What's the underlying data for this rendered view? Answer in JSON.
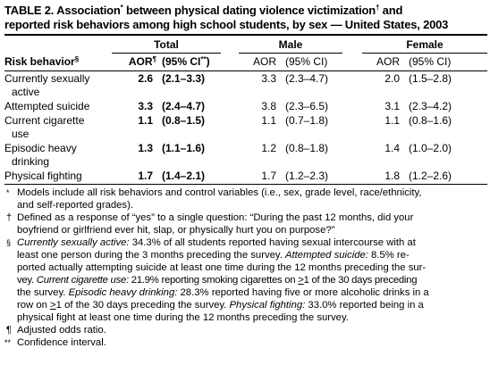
{
  "title": {
    "line1": "TABLE 2. Association",
    "mark1": "*",
    "line1b": " between physical dating violence victimization",
    "mark2": "†",
    "line1c": " and",
    "line2": "reported risk behaviors among high school students, by sex — United States, 2003"
  },
  "groups": [
    "Total",
    "Male",
    "Female"
  ],
  "headers": {
    "risk": "Risk behavior",
    "risk_mark": "§",
    "total_aor": "AOR",
    "total_aor_mark": "¶",
    "total_ci": "(95% CI",
    "total_ci_mark": "**",
    "total_ci_close": ")",
    "male_aor": "AOR",
    "male_ci": "(95% CI)",
    "female_aor": "AOR",
    "female_ci": "(95% CI)"
  },
  "rows": [
    {
      "label1": "Currently sexually",
      "label2": "active",
      "t_aor": "2.6",
      "t_ci": "(2.1–3.3)",
      "m_aor": "3.3",
      "m_ci": "(2.3–4.7)",
      "f_aor": "2.0",
      "f_ci": "(1.5–2.8)"
    },
    {
      "label1": "Attempted suicide",
      "label2": "",
      "t_aor": "3.3",
      "t_ci": "(2.4–4.7)",
      "m_aor": "3.8",
      "m_ci": "(2.3–6.5)",
      "f_aor": "3.1",
      "f_ci": "(2.3–4.2)"
    },
    {
      "label1": "Current cigarette",
      "label2": "use",
      "t_aor": "1.1",
      "t_ci": "(0.8–1.5)",
      "m_aor": "1.1",
      "m_ci": "(0.7–1.8)",
      "f_aor": "1.1",
      "f_ci": "(0.8–1.6)"
    },
    {
      "label1": "Episodic heavy",
      "label2": "drinking",
      "t_aor": "1.3",
      "t_ci": "(1.1–1.6)",
      "m_aor": "1.2",
      "m_ci": "(0.8–1.8)",
      "f_aor": "1.4",
      "f_ci": "(1.0–2.0)"
    },
    {
      "label1": "Physical fighting",
      "label2": "",
      "t_aor": "1.7",
      "t_ci": "(1.4–2.1)",
      "m_aor": "1.7",
      "m_ci": "(1.2–2.3)",
      "f_aor": "1.8",
      "f_ci": "(1.2–2.6)"
    }
  ],
  "footnotes": {
    "n1_mark": "*",
    "n1_line1": "Models include all risk behaviors and control variables (i.e., sex, grade level, race/ethnicity,",
    "n1_line2": "and self-reported grades).",
    "n2_mark": "†",
    "n2_line1": "Defined as a response of “yes” to a single question: “During the past 12 months, did your",
    "n2_line2": "boyfriend or girlfriend ever hit, slap, or physically hurt you on purpose?”",
    "n3_mark": "§",
    "n3_l1_i": "Currently sexually active:",
    "n3_l1": " 34.3% of all students reported having sexual intercourse with at",
    "n3_l2": "least one person during the 3 months preceding the survey. ",
    "n3_l2_i": "Attempted suicide:",
    "n3_l2b": " 8.5% re-",
    "n3_l3": "ported actually attempting suicide at least one time during the 12 months preceding the sur-",
    "n3_l4a": "vey. ",
    "n3_l4_i": "Current cigarette use:",
    "n3_l4b": " 21.9% reporting smoking cigarettes on ",
    "n3_l4_ge": ">",
    "n3_l4c": "1 of the 30 days preceding",
    "n3_l5a": "the survey. ",
    "n3_l5_i": "Episodic heavy drinking:",
    "n3_l5b": " 28.3% reported having five or more alcoholic drinks in a",
    "n3_l6a": "row on ",
    "n3_l6_ge": ">",
    "n3_l6b": "1 of the 30 days preceding the survey. ",
    "n3_l6_i": "Physical fighting:",
    "n3_l6c": " 33.0% reported being in a",
    "n3_l7": "physical fight at least one time during the 12 months preceding the survey.",
    "n4_mark": "¶",
    "n4": "Adjusted odds ratio.",
    "n5_mark": "**",
    "n5": "Confidence interval."
  }
}
